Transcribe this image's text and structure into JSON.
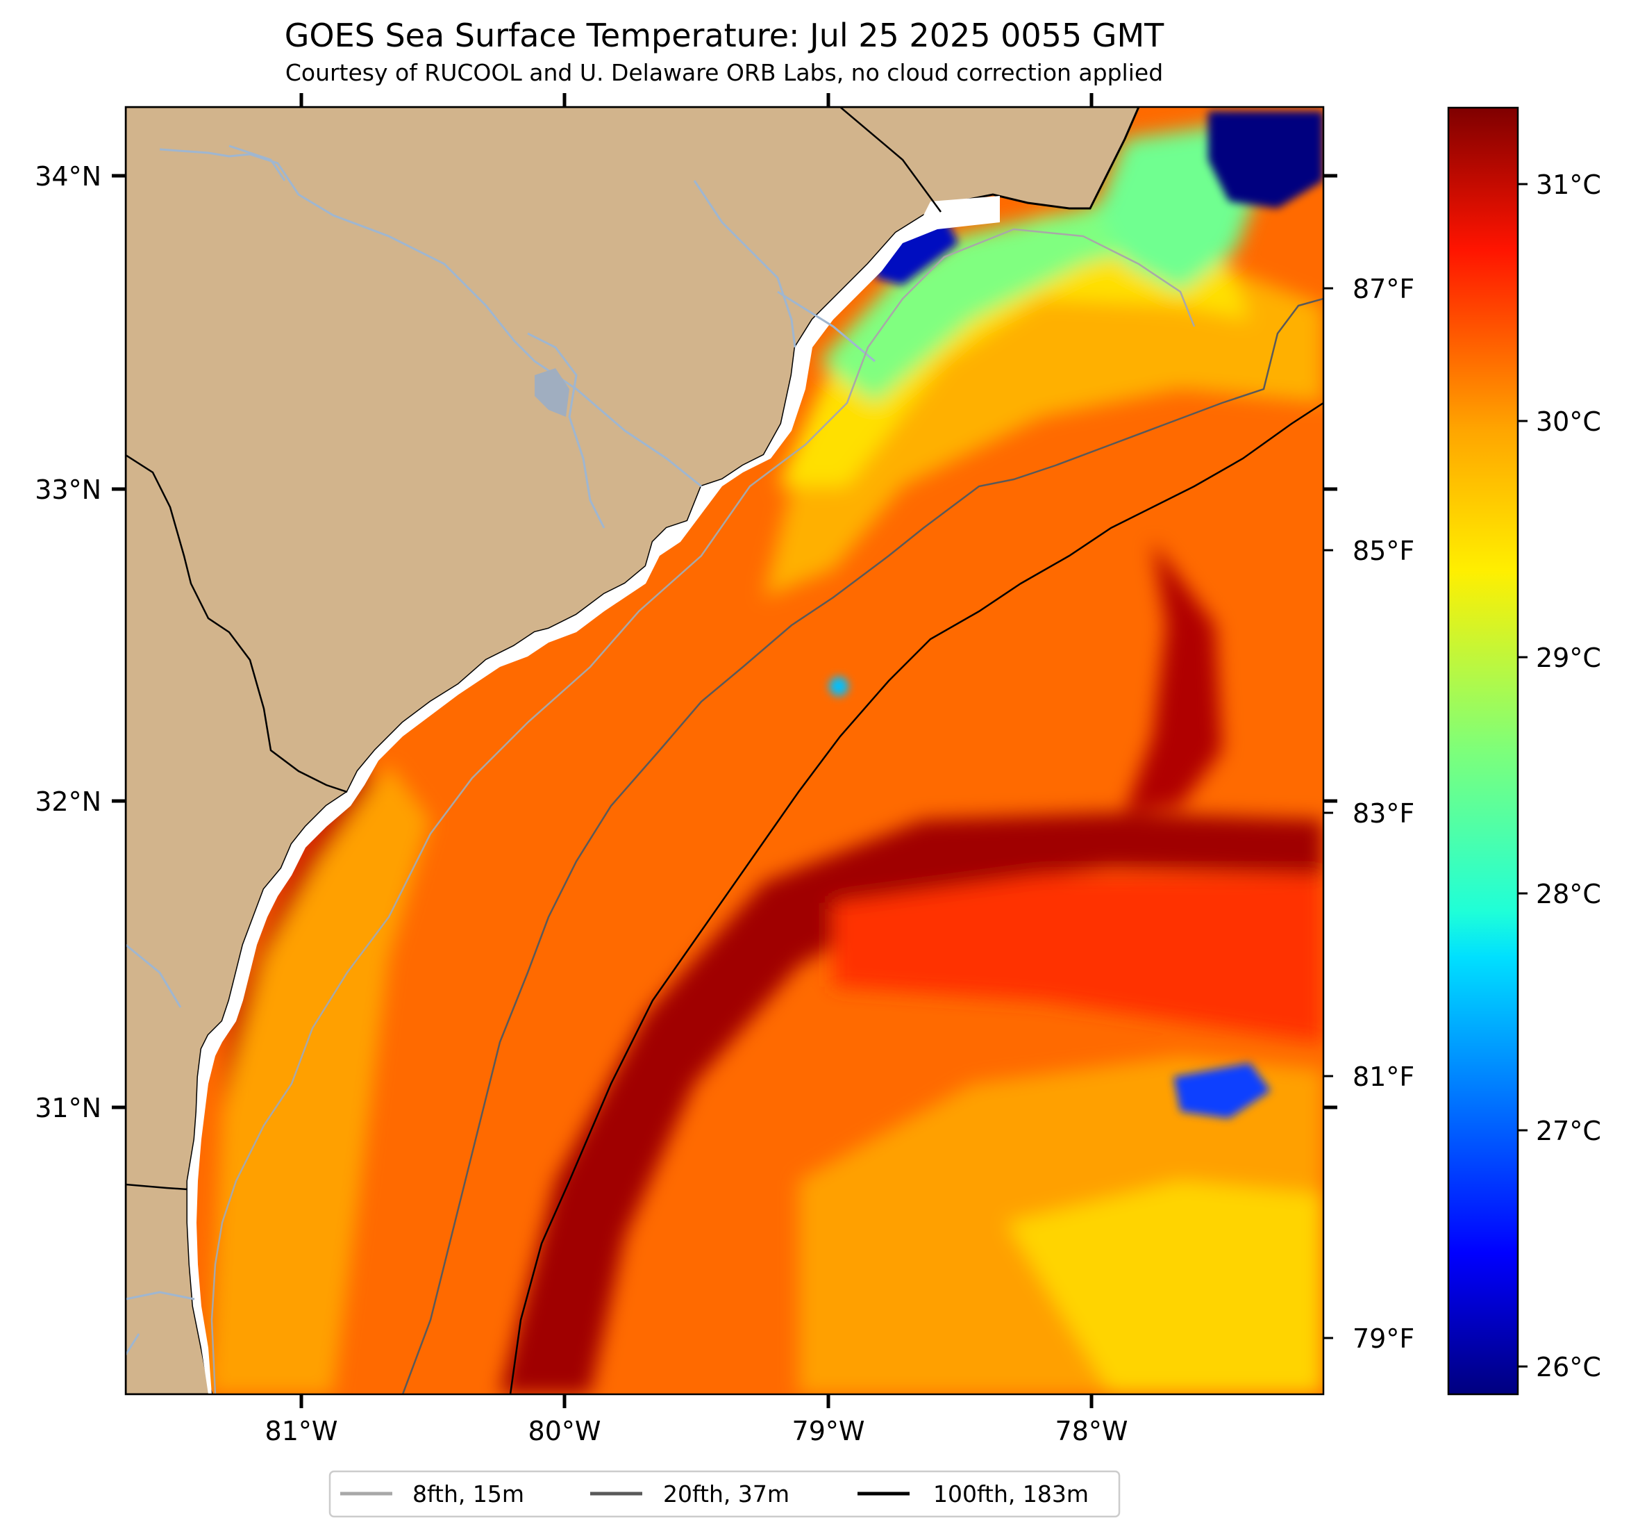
{
  "title": "GOES Sea Surface Temperature: Jul 25 2025 0055 GMT",
  "subtitle": "Courtesy of RUCOOL and U. Delaware ORB Labs, no cloud correction applied",
  "map": {
    "lat_labels": [
      "34°N",
      "33°N",
      "32°N",
      "31°N"
    ],
    "lon_labels": [
      "81°W",
      "80°W",
      "79°W",
      "78°W"
    ],
    "colors": {
      "land": "#d2b48c",
      "river": "#9fb6d0",
      "coast": "#000000",
      "shallow_isobath": "#a8a8a8",
      "mid_isobath": "#595959",
      "deep_isobath": "#000000"
    }
  },
  "fahrenheit_axis": {
    "labels": [
      "87°F",
      "85°F",
      "83°F",
      "81°F",
      "79°F"
    ]
  },
  "colorbar": {
    "labels": [
      "31°C",
      "30°C",
      "29°C",
      "28°C",
      "27°C",
      "26°C"
    ],
    "colormap": "jet"
  },
  "legend": {
    "entries": [
      {
        "label": "8fth, 15m",
        "color": "#a8a8a8"
      },
      {
        "label": "20fth, 37m",
        "color": "#595959"
      },
      {
        "label": "100fth, 183m",
        "color": "#000000"
      }
    ]
  }
}
